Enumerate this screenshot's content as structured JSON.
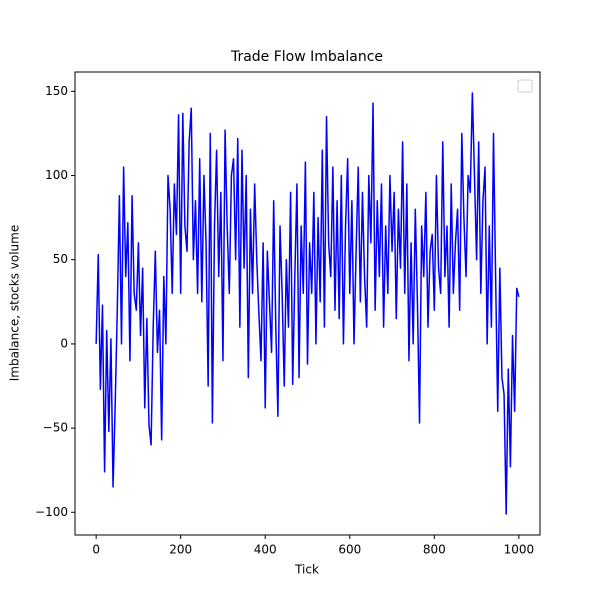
{
  "chart_data": {
    "type": "line",
    "title": "Trade Flow Imbalance",
    "x_label": "Tick",
    "y_label": "Imbalance, stocks volume",
    "x": [
      0,
      5,
      10,
      15,
      20,
      25,
      30,
      35,
      40,
      45,
      50,
      55,
      60,
      65,
      70,
      75,
      80,
      85,
      90,
      95,
      100,
      105,
      110,
      115,
      120,
      125,
      130,
      135,
      140,
      145,
      150,
      155,
      160,
      165,
      170,
      175,
      180,
      185,
      190,
      195,
      200,
      205,
      210,
      215,
      220,
      225,
      230,
      235,
      240,
      245,
      250,
      255,
      260,
      265,
      270,
      275,
      280,
      285,
      290,
      295,
      300,
      305,
      310,
      315,
      320,
      325,
      330,
      335,
      340,
      345,
      350,
      355,
      360,
      365,
      370,
      375,
      380,
      385,
      390,
      395,
      400,
      405,
      410,
      415,
      420,
      425,
      430,
      435,
      440,
      445,
      450,
      455,
      460,
      465,
      470,
      475,
      480,
      485,
      490,
      495,
      500,
      505,
      510,
      515,
      520,
      525,
      530,
      535,
      540,
      545,
      550,
      555,
      560,
      565,
      570,
      575,
      580,
      585,
      590,
      595,
      600,
      605,
      610,
      615,
      620,
      625,
      630,
      635,
      640,
      645,
      650,
      655,
      660,
      665,
      670,
      675,
      680,
      685,
      690,
      695,
      700,
      705,
      710,
      715,
      720,
      725,
      730,
      735,
      740,
      745,
      750,
      755,
      760,
      765,
      770,
      775,
      780,
      785,
      790,
      795,
      800,
      805,
      810,
      815,
      820,
      825,
      830,
      835,
      840,
      845,
      850,
      855,
      860,
      865,
      870,
      875,
      880,
      885,
      890,
      895,
      900,
      905,
      910,
      915,
      920,
      925,
      930,
      935,
      940,
      945,
      950,
      955,
      960,
      965,
      970,
      975,
      980,
      985,
      990,
      995,
      1000
    ],
    "series": [
      {
        "color": "#0000ff",
        "values": [
          0,
          53,
          -27,
          23,
          -76,
          8,
          -52,
          3,
          -85,
          -37,
          20,
          88,
          0,
          105,
          40,
          72,
          -10,
          88,
          30,
          20,
          60,
          5,
          45,
          -38,
          15,
          -48,
          -60,
          10,
          55,
          -5,
          20,
          -57,
          40,
          0,
          100,
          80,
          30,
          95,
          65,
          136,
          30,
          137,
          70,
          55,
          120,
          140,
          50,
          85,
          30,
          110,
          25,
          100,
          60,
          -25,
          125,
          -47,
          70,
          115,
          40,
          90,
          -10,
          127,
          70,
          30,
          100,
          110,
          50,
          122,
          10,
          115,
          45,
          100,
          -20,
          80,
          30,
          95,
          50,
          18,
          -10,
          60,
          -38,
          55,
          25,
          -5,
          85,
          10,
          -43,
          70,
          30,
          -25,
          50,
          10,
          90,
          -24,
          40,
          95,
          -20,
          70,
          30,
          108,
          -12,
          60,
          30,
          90,
          0,
          75,
          25,
          115,
          10,
          135,
          60,
          40,
          105,
          20,
          85,
          15,
          100,
          0,
          70,
          110,
          30,
          85,
          0,
          55,
          105,
          25,
          90,
          40,
          10,
          100,
          60,
          143,
          20,
          85,
          40,
          95,
          10,
          70,
          30,
          100,
          55,
          90,
          15,
          80,
          45,
          120,
          30,
          95,
          -10,
          60,
          0,
          80,
          25,
          -47,
          70,
          40,
          90,
          10,
          55,
          65,
          20,
          100,
          45,
          30,
          120,
          40,
          70,
          10,
          95,
          30,
          60,
          80,
          20,
          125,
          75,
          40,
          100,
          90,
          149,
          100,
          50,
          120,
          30,
          85,
          105,
          0,
          70,
          10,
          125,
          40,
          -40,
          45,
          -20,
          -30,
          -101,
          -15,
          -73,
          5,
          -40,
          33,
          28
        ]
      }
    ],
    "xlim": [
      -50,
      1050
    ],
    "ylim": [
      -113.5,
      161.5
    ],
    "xticks": [
      0,
      200,
      400,
      600,
      800,
      1000
    ],
    "yticks": [
      {
        "value": -100,
        "label": "−100"
      },
      {
        "value": -50,
        "label": "−50"
      },
      0,
      50,
      100,
      150
    ],
    "legend": "upper right"
  }
}
